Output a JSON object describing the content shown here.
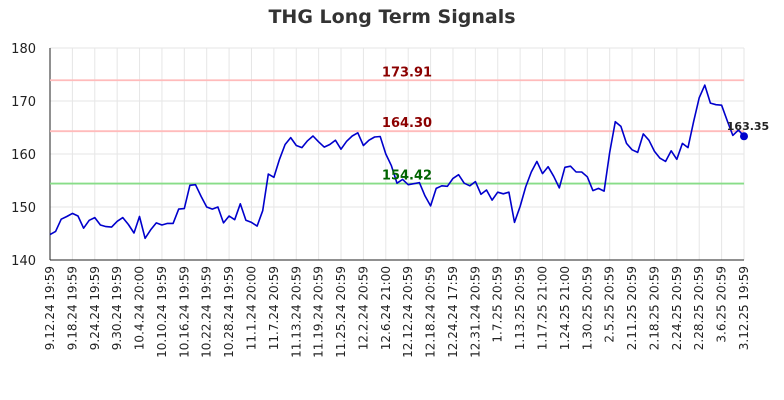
{
  "chart_data": {
    "type": "line",
    "title": "THG Long Term Signals",
    "xlabel": "",
    "ylabel": "",
    "ylim": [
      140,
      180
    ],
    "yticks": [
      140,
      150,
      160,
      170,
      180
    ],
    "grid": true,
    "x_tick_labels": [
      "9.12.24 19:59",
      "9.18.24 19:59",
      "9.24.24 19:59",
      "9.30.24 19:59",
      "10.4.24 20:00",
      "10.10.24 19:59",
      "10.16.24 19:59",
      "10.22.24 19:59",
      "10.28.24 19:59",
      "11.1.24 20:00",
      "11.7.24 20:59",
      "11.13.24 20:59",
      "11.19.24 20:59",
      "11.25.24 20:59",
      "12.2.24 20:59",
      "12.6.24 21:00",
      "12.12.24 20:59",
      "12.18.24 20:59",
      "12.24.24 17:59",
      "12.31.24 20:59",
      "1.7.25 20:59",
      "1.13.25 20:59",
      "1.17.25 21:00",
      "1.24.25 21:00",
      "1.30.25 20:59",
      "2.5.25 20:59",
      "2.11.25 20:59",
      "2.18.25 20:59",
      "2.24.25 20:59",
      "2.28.25 20:59",
      "3.6.25 20:59",
      "3.12.25 19:59"
    ],
    "series": [
      {
        "color": "#0000cc",
        "values": [
          144.8,
          145.4,
          147.7,
          148.2,
          148.8,
          148.3,
          146.0,
          147.5,
          148.0,
          146.6,
          146.3,
          146.2,
          147.3,
          148.0,
          146.7,
          145.1,
          148.2,
          144.1,
          145.7,
          147.0,
          146.6,
          146.9,
          146.9,
          149.6,
          149.7,
          154.1,
          154.2,
          152.0,
          150.0,
          149.6,
          150.0,
          147.0,
          148.3,
          147.6,
          150.6,
          147.5,
          147.1,
          146.4,
          149.3,
          156.2,
          155.6,
          159.0,
          161.8,
          163.1,
          161.6,
          161.2,
          162.5,
          163.4,
          162.3,
          161.3,
          161.8,
          162.6,
          160.9,
          162.4,
          163.4,
          164.0,
          161.6,
          162.6,
          163.2,
          163.3,
          160.0,
          157.8,
          154.5,
          155.2,
          154.2,
          154.4,
          154.6,
          152.1,
          150.2,
          153.5,
          154.0,
          153.9,
          155.4,
          156.1,
          154.5,
          154.0,
          154.8,
          152.4,
          153.2,
          151.3,
          152.8,
          152.5,
          152.8,
          147.1,
          150.1,
          153.8,
          156.6,
          158.6,
          156.3,
          157.6,
          155.8,
          153.6,
          157.5,
          157.7,
          156.6,
          156.6,
          155.7,
          153.1,
          153.5,
          153.0,
          160.3,
          166.1,
          165.2,
          162.0,
          160.8,
          160.3,
          163.8,
          162.6,
          160.5,
          159.2,
          158.6,
          160.6,
          159.0,
          162.0,
          161.2,
          166.1,
          170.6,
          173.0,
          169.6,
          169.3,
          169.2,
          166.3,
          163.5,
          164.5,
          163.35
        ]
      }
    ],
    "levels": [
      {
        "value": 173.91,
        "label": "173.91",
        "line_color": "#ffbbbb",
        "label_color": "#8b0000"
      },
      {
        "value": 164.3,
        "label": "164.30",
        "line_color": "#ffbbbb",
        "label_color": "#8b0000"
      },
      {
        "value": 154.42,
        "label": "154.42",
        "line_color": "#88dd88",
        "label_color": "#006400"
      }
    ],
    "last_point": {
      "value": 163.35,
      "label": "163.35"
    }
  }
}
